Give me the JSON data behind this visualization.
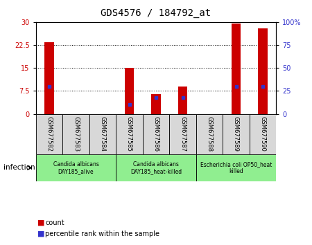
{
  "title": "GDS4576 / 184792_at",
  "samples": [
    "GSM677582",
    "GSM677583",
    "GSM677584",
    "GSM677585",
    "GSM677586",
    "GSM677587",
    "GSM677588",
    "GSM677589",
    "GSM677590"
  ],
  "counts": [
    23.5,
    0,
    0,
    15.0,
    6.5,
    9.0,
    0,
    29.5,
    28.0
  ],
  "percentile_ranks": [
    30,
    0,
    0,
    10,
    18,
    18,
    0,
    30,
    30
  ],
  "ylim_left": [
    0,
    30
  ],
  "ylim_right": [
    0,
    100
  ],
  "yticks_left": [
    0,
    7.5,
    15,
    22.5,
    30
  ],
  "yticks_right": [
    0,
    25,
    50,
    75,
    100
  ],
  "groups": [
    {
      "label": "Candida albicans\nDAY185_alive",
      "start": 0,
      "end": 3,
      "color": "#90EE90"
    },
    {
      "label": "Candida albicans\nDAY185_heat-killed",
      "start": 3,
      "end": 6,
      "color": "#90EE90"
    },
    {
      "label": "Escherichia coli OP50_heat\nkilled",
      "start": 6,
      "end": 9,
      "color": "#90EE90"
    }
  ],
  "factor_label": "infection",
  "bar_color": "#cc0000",
  "dot_color": "#3333cc",
  "sample_bg": "#d8d8d8",
  "plot_bg": "#ffffff",
  "legend_items": [
    "count",
    "percentile rank within the sample"
  ],
  "bar_width": 0.35
}
